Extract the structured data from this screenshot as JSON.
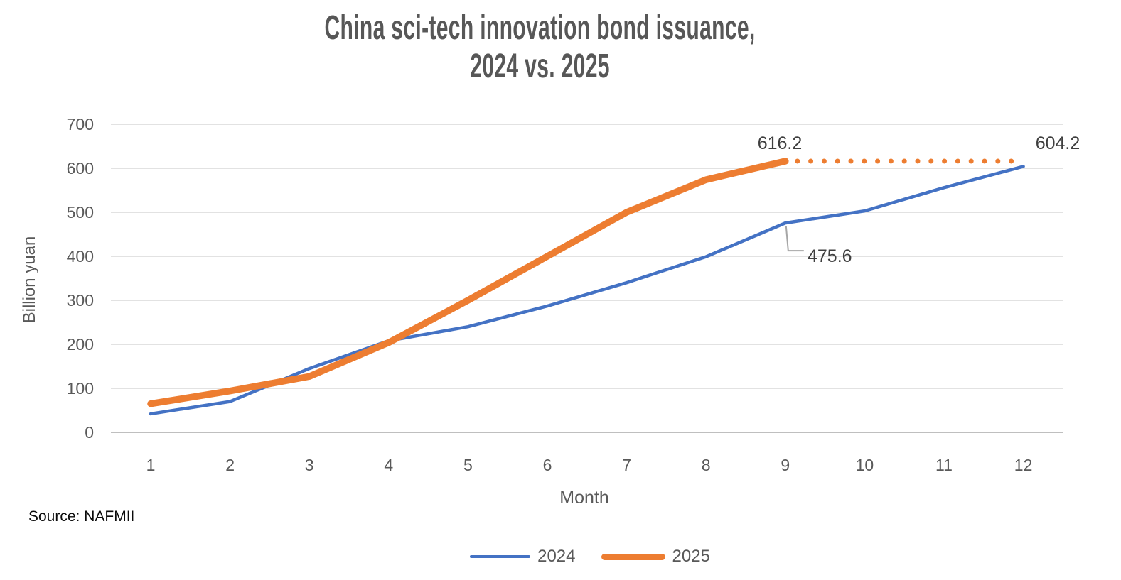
{
  "title": {
    "line1": "China sci-tech innovation bond issuance,",
    "line2": "2024 vs. 2025"
  },
  "source": "Source: NAFMII",
  "chart_data": {
    "type": "line",
    "x": [
      1,
      2,
      3,
      4,
      5,
      6,
      7,
      8,
      9,
      10,
      11,
      12
    ],
    "xlabel": "Month",
    "ylabel": "Billion yuan",
    "ylim": [
      0,
      700
    ],
    "ytick_step": 100,
    "grid": true,
    "legend_position": "bottom",
    "series": [
      {
        "name": "2024",
        "color": "#4472C4",
        "style": "solid",
        "line_width": 4.5,
        "values": [
          42,
          70,
          145,
          208,
          240,
          287,
          340,
          399,
          475.6,
          503,
          556,
          604.2
        ]
      },
      {
        "name": "2025",
        "color": "#ED7D31",
        "style": "solid",
        "line_width": 9.5,
        "values": [
          65,
          94,
          127,
          204,
          300,
          400,
          500,
          574,
          616.2
        ]
      }
    ],
    "dotted_extension": {
      "series": "2025",
      "from_month": 9,
      "to_month": 12,
      "value": 616.2,
      "color": "#ED7D31",
      "dot_count": 17
    },
    "annotations": [
      {
        "id": "label-2025-end",
        "text": "616.2",
        "series": "2025",
        "month": 9
      },
      {
        "id": "label-2024-m9",
        "text": "475.6",
        "series": "2024",
        "month": 9
      },
      {
        "id": "label-2024-end",
        "text": "604.2",
        "series": "2024",
        "month": 12
      }
    ],
    "colors": {
      "gridline": "#D9D9D9",
      "axis_line": "#BFBFBF",
      "tick_label": "#595959",
      "data_label": "#3f3f3f",
      "leader_line": "#A6A6A6"
    }
  },
  "legend": {
    "items": [
      {
        "label": "2024"
      },
      {
        "label": "2025"
      }
    ]
  }
}
